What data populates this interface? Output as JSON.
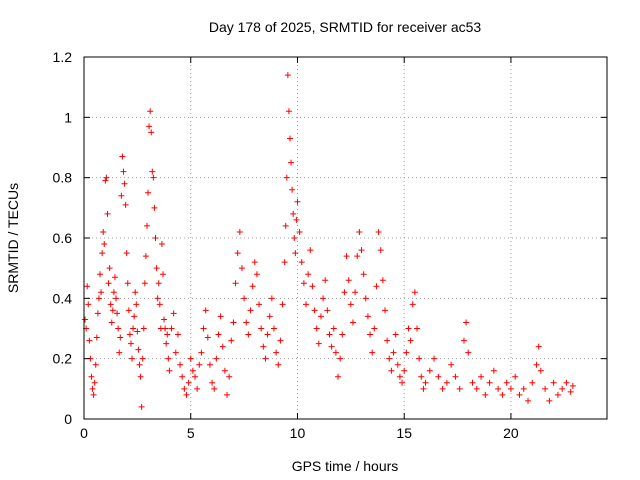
{
  "chart_data": {
    "type": "scatter",
    "title": "Day 178 of 2025, SRMTID for receiver ac53",
    "xlabel": "GPS time / hours",
    "ylabel": "SRMTID / TECUs",
    "xlim": [
      0,
      24.5
    ],
    "ylim": [
      0,
      1.2
    ],
    "xticks": [
      0,
      5,
      10,
      15,
      20
    ],
    "xtick_labels": [
      "0",
      "5",
      "10",
      "15",
      "20"
    ],
    "yticks": [
      0,
      0.2,
      0.4,
      0.6,
      0.8,
      1.0,
      1.2
    ],
    "ytick_labels": [
      "0",
      "0.2",
      "0.4",
      "0.6",
      "0.8",
      "1",
      "1.2"
    ],
    "grid": true,
    "marker": "+",
    "series": [
      {
        "name": "SRMTID",
        "color": "#ff0000",
        "points": [
          [
            0.05,
            0.33
          ],
          [
            0.1,
            0.3
          ],
          [
            0.15,
            0.44
          ],
          [
            0.2,
            0.38
          ],
          [
            0.25,
            0.26
          ],
          [
            0.3,
            0.2
          ],
          [
            0.35,
            0.14
          ],
          [
            0.4,
            0.1
          ],
          [
            0.45,
            0.08
          ],
          [
            0.5,
            0.12
          ],
          [
            0.55,
            0.18
          ],
          [
            0.6,
            0.27
          ],
          [
            0.65,
            0.35
          ],
          [
            0.7,
            0.4
          ],
          [
            0.75,
            0.48
          ],
          [
            0.8,
            0.42
          ],
          [
            0.85,
            0.55
          ],
          [
            0.9,
            0.62
          ],
          [
            0.95,
            0.58
          ],
          [
            1.0,
            0.79
          ],
          [
            1.05,
            0.8
          ],
          [
            1.1,
            0.68
          ],
          [
            1.15,
            0.45
          ],
          [
            1.2,
            0.5
          ],
          [
            1.25,
            0.38
          ],
          [
            1.3,
            0.32
          ],
          [
            1.35,
            0.36
          ],
          [
            1.4,
            0.42
          ],
          [
            1.45,
            0.47
          ],
          [
            1.5,
            0.4
          ],
          [
            1.55,
            0.35
          ],
          [
            1.6,
            0.3
          ],
          [
            1.65,
            0.22
          ],
          [
            1.7,
            0.27
          ],
          [
            1.75,
            0.74
          ],
          [
            1.8,
            0.87
          ],
          [
            1.85,
            0.82
          ],
          [
            1.9,
            0.78
          ],
          [
            1.95,
            0.71
          ],
          [
            2.0,
            0.55
          ],
          [
            2.05,
            0.45
          ],
          [
            2.1,
            0.36
          ],
          [
            2.15,
            0.28
          ],
          [
            2.2,
            0.25
          ],
          [
            2.25,
            0.2
          ],
          [
            2.3,
            0.3
          ],
          [
            2.35,
            0.34
          ],
          [
            2.4,
            0.42
          ],
          [
            2.45,
            0.38
          ],
          [
            2.5,
            0.29
          ],
          [
            2.55,
            0.23
          ],
          [
            2.6,
            0.18
          ],
          [
            2.65,
            0.14
          ],
          [
            2.7,
            0.04
          ],
          [
            2.75,
            0.2
          ],
          [
            2.8,
            0.3
          ],
          [
            2.85,
            0.45
          ],
          [
            2.9,
            0.54
          ],
          [
            2.95,
            0.64
          ],
          [
            3.0,
            0.75
          ],
          [
            3.05,
            0.97
          ],
          [
            3.1,
            1.02
          ],
          [
            3.15,
            0.95
          ],
          [
            3.2,
            0.82
          ],
          [
            3.25,
            0.8
          ],
          [
            3.3,
            0.7
          ],
          [
            3.35,
            0.6
          ],
          [
            3.4,
            0.5
          ],
          [
            3.45,
            0.4
          ],
          [
            3.5,
            0.45
          ],
          [
            3.55,
            0.38
          ],
          [
            3.6,
            0.3
          ],
          [
            3.65,
            0.58
          ],
          [
            3.7,
            0.48
          ],
          [
            3.75,
            0.33
          ],
          [
            3.8,
            0.3
          ],
          [
            3.85,
            0.25
          ],
          [
            3.9,
            0.28
          ],
          [
            3.95,
            0.2
          ],
          [
            4.0,
            0.16
          ],
          [
            4.1,
            0.3
          ],
          [
            4.2,
            0.35
          ],
          [
            4.3,
            0.22
          ],
          [
            4.4,
            0.28
          ],
          [
            4.5,
            0.18
          ],
          [
            4.6,
            0.14
          ],
          [
            4.7,
            0.1
          ],
          [
            4.8,
            0.08
          ],
          [
            4.9,
            0.12
          ],
          [
            5.0,
            0.2
          ],
          [
            5.1,
            0.16
          ],
          [
            5.2,
            0.14
          ],
          [
            5.3,
            0.1
          ],
          [
            5.4,
            0.18
          ],
          [
            5.5,
            0.22
          ],
          [
            5.6,
            0.3
          ],
          [
            5.7,
            0.36
          ],
          [
            5.8,
            0.27
          ],
          [
            5.9,
            0.18
          ],
          [
            6.0,
            0.12
          ],
          [
            6.1,
            0.1
          ],
          [
            6.2,
            0.2
          ],
          [
            6.3,
            0.28
          ],
          [
            6.4,
            0.34
          ],
          [
            6.5,
            0.24
          ],
          [
            6.6,
            0.16
          ],
          [
            6.7,
            0.08
          ],
          [
            6.8,
            0.14
          ],
          [
            6.9,
            0.26
          ],
          [
            7.0,
            0.32
          ],
          [
            7.1,
            0.45
          ],
          [
            7.2,
            0.55
          ],
          [
            7.3,
            0.62
          ],
          [
            7.4,
            0.5
          ],
          [
            7.5,
            0.4
          ],
          [
            7.6,
            0.32
          ],
          [
            7.7,
            0.28
          ],
          [
            7.8,
            0.36
          ],
          [
            7.9,
            0.44
          ],
          [
            8.0,
            0.52
          ],
          [
            8.1,
            0.48
          ],
          [
            8.2,
            0.38
          ],
          [
            8.3,
            0.3
          ],
          [
            8.4,
            0.24
          ],
          [
            8.5,
            0.2
          ],
          [
            8.6,
            0.28
          ],
          [
            8.7,
            0.34
          ],
          [
            8.8,
            0.4
          ],
          [
            8.9,
            0.3
          ],
          [
            9.0,
            0.22
          ],
          [
            9.1,
            0.18
          ],
          [
            9.2,
            0.26
          ],
          [
            9.3,
            0.38
          ],
          [
            9.4,
            0.52
          ],
          [
            9.45,
            0.64
          ],
          [
            9.5,
            0.8
          ],
          [
            9.55,
            1.14
          ],
          [
            9.6,
            1.02
          ],
          [
            9.65,
            0.93
          ],
          [
            9.7,
            0.85
          ],
          [
            9.75,
            0.76
          ],
          [
            9.8,
            0.68
          ],
          [
            9.85,
            0.6
          ],
          [
            9.9,
            0.55
          ],
          [
            9.95,
            0.66
          ],
          [
            10.0,
            0.72
          ],
          [
            10.1,
            0.62
          ],
          [
            10.2,
            0.52
          ],
          [
            10.3,
            0.45
          ],
          [
            10.4,
            0.38
          ],
          [
            10.5,
            0.48
          ],
          [
            10.6,
            0.56
          ],
          [
            10.7,
            0.44
          ],
          [
            10.8,
            0.36
          ],
          [
            10.9,
            0.3
          ],
          [
            11.0,
            0.25
          ],
          [
            11.1,
            0.34
          ],
          [
            11.2,
            0.4
          ],
          [
            11.3,
            0.46
          ],
          [
            11.4,
            0.36
          ],
          [
            11.5,
            0.28
          ],
          [
            11.6,
            0.24
          ],
          [
            11.7,
            0.3
          ],
          [
            11.8,
            0.22
          ],
          [
            11.9,
            0.14
          ],
          [
            12.0,
            0.2
          ],
          [
            12.1,
            0.28
          ],
          [
            12.2,
            0.42
          ],
          [
            12.3,
            0.54
          ],
          [
            12.4,
            0.46
          ],
          [
            12.5,
            0.38
          ],
          [
            12.6,
            0.32
          ],
          [
            12.7,
            0.42
          ],
          [
            12.8,
            0.54
          ],
          [
            12.9,
            0.62
          ],
          [
            13.0,
            0.56
          ],
          [
            13.1,
            0.48
          ],
          [
            13.2,
            0.4
          ],
          [
            13.3,
            0.34
          ],
          [
            13.4,
            0.28
          ],
          [
            13.5,
            0.22
          ],
          [
            13.6,
            0.3
          ],
          [
            13.7,
            0.44
          ],
          [
            13.8,
            0.62
          ],
          [
            13.9,
            0.56
          ],
          [
            14.0,
            0.46
          ],
          [
            14.1,
            0.36
          ],
          [
            14.2,
            0.26
          ],
          [
            14.3,
            0.2
          ],
          [
            14.4,
            0.16
          ],
          [
            14.5,
            0.22
          ],
          [
            14.6,
            0.28
          ],
          [
            14.7,
            0.18
          ],
          [
            14.8,
            0.14
          ],
          [
            14.9,
            0.12
          ],
          [
            15.0,
            0.16
          ],
          [
            15.1,
            0.22
          ],
          [
            15.2,
            0.3
          ],
          [
            15.3,
            0.26
          ],
          [
            15.4,
            0.38
          ],
          [
            15.5,
            0.42
          ],
          [
            15.6,
            0.3
          ],
          [
            15.7,
            0.2
          ],
          [
            15.8,
            0.14
          ],
          [
            15.9,
            0.1
          ],
          [
            16.0,
            0.12
          ],
          [
            16.2,
            0.16
          ],
          [
            16.4,
            0.2
          ],
          [
            16.6,
            0.14
          ],
          [
            16.8,
            0.1
          ],
          [
            17.0,
            0.12
          ],
          [
            17.2,
            0.18
          ],
          [
            17.4,
            0.14
          ],
          [
            17.6,
            0.1
          ],
          [
            17.8,
            0.26
          ],
          [
            17.9,
            0.32
          ],
          [
            18.0,
            0.22
          ],
          [
            18.2,
            0.12
          ],
          [
            18.4,
            0.1
          ],
          [
            18.6,
            0.14
          ],
          [
            18.8,
            0.08
          ],
          [
            19.0,
            0.12
          ],
          [
            19.2,
            0.16
          ],
          [
            19.4,
            0.1
          ],
          [
            19.6,
            0.08
          ],
          [
            19.8,
            0.12
          ],
          [
            20.0,
            0.1
          ],
          [
            20.2,
            0.14
          ],
          [
            20.4,
            0.08
          ],
          [
            20.6,
            0.1
          ],
          [
            20.8,
            0.06
          ],
          [
            21.0,
            0.12
          ],
          [
            21.2,
            0.18
          ],
          [
            21.3,
            0.24
          ],
          [
            21.4,
            0.16
          ],
          [
            21.6,
            0.1
          ],
          [
            21.8,
            0.06
          ],
          [
            22.0,
            0.12
          ],
          [
            22.2,
            0.08
          ],
          [
            22.4,
            0.1
          ],
          [
            22.6,
            0.12
          ],
          [
            22.8,
            0.09
          ],
          [
            22.9,
            0.11
          ]
        ]
      }
    ]
  }
}
